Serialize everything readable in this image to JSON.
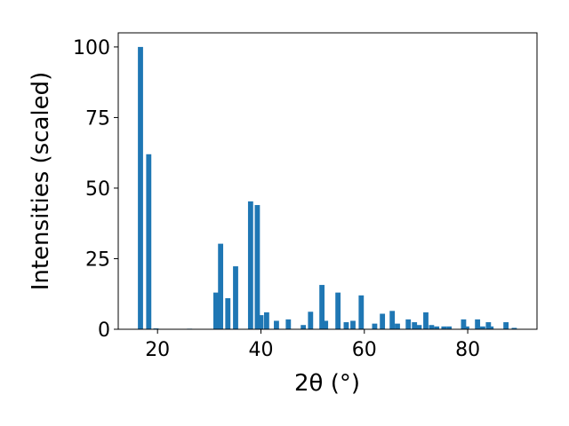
{
  "chart_data": {
    "type": "bar",
    "xlabel": "2θ (°)",
    "ylabel": "Intensities (scaled)",
    "color": "#1f77b4",
    "x": [
      16.7,
      18.3,
      19.7,
      26.2,
      31.3,
      32.2,
      33.6,
      35.1,
      38.0,
      39.3,
      40.0,
      41.1,
      43.0,
      45.3,
      48.2,
      49.6,
      51.8,
      52.5,
      54.9,
      56.5,
      57.8,
      59.4,
      62.0,
      63.5,
      65.4,
      66.4,
      68.5,
      69.7,
      70.6,
      71.9,
      73.0,
      74.0,
      75.4,
      76.4,
      79.2,
      79.8,
      81.9,
      82.9,
      84.0,
      84.5,
      87.4,
      89.0
    ],
    "values": [
      100,
      62,
      0.3,
      0.2,
      13,
      30.3,
      11,
      22.3,
      45.3,
      44,
      5,
      6,
      3,
      3.5,
      1.5,
      6.2,
      15.7,
      3,
      13,
      2.5,
      3,
      12,
      2,
      5.5,
      6.5,
      2,
      3.5,
      2.5,
      1.5,
      6,
      1.5,
      1,
      1,
      1,
      3.5,
      1,
      3.5,
      1,
      2.5,
      1,
      2.5,
      0.5
    ],
    "xlim": [
      12.4,
      93.4
    ],
    "ylim": [
      0,
      105
    ],
    "xticks": [
      20,
      40,
      60,
      80
    ],
    "yticks": [
      0,
      25,
      50,
      75,
      100
    ]
  }
}
